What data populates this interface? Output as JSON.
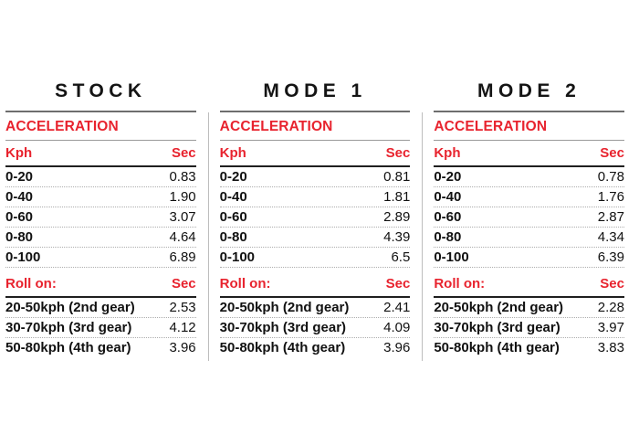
{
  "accent_red": "#e8232e",
  "columns": [
    {
      "title": "STOCK",
      "section_label": "ACCELERATION",
      "kph_header": "Kph",
      "sec_header": "Sec",
      "accel_rows": [
        {
          "label": "0-20",
          "sec": "0.83"
        },
        {
          "label": "0-40",
          "sec": "1.90"
        },
        {
          "label": "0-60",
          "sec": "3.07"
        },
        {
          "label": "0-80",
          "sec": "4.64"
        },
        {
          "label": "0-100",
          "sec": "6.89"
        }
      ],
      "rollon_label": "Roll on:",
      "rollon_sec_header": "Sec",
      "rollon_rows": [
        {
          "label": "20-50kph (2nd gear)",
          "sec": "2.53"
        },
        {
          "label": "30-70kph (3rd gear)",
          "sec": "4.12"
        },
        {
          "label": "50-80kph (4th gear)",
          "sec": "3.96"
        }
      ]
    },
    {
      "title": "MODE 1",
      "section_label": "ACCELERATION",
      "kph_header": "Kph",
      "sec_header": "Sec",
      "accel_rows": [
        {
          "label": "0-20",
          "sec": "0.81"
        },
        {
          "label": "0-40",
          "sec": "1.81"
        },
        {
          "label": "0-60",
          "sec": "2.89"
        },
        {
          "label": "0-80",
          "sec": "4.39"
        },
        {
          "label": "0-100",
          "sec": "6.5"
        }
      ],
      "rollon_label": "Roll on:",
      "rollon_sec_header": "Sec",
      "rollon_rows": [
        {
          "label": "20-50kph (2nd gear)",
          "sec": "2.41"
        },
        {
          "label": "30-70kph (3rd gear)",
          "sec": "4.09"
        },
        {
          "label": "50-80kph (4th gear)",
          "sec": "3.96"
        }
      ]
    },
    {
      "title": "MODE 2",
      "section_label": "ACCELERATION",
      "kph_header": "Kph",
      "sec_header": "Sec",
      "accel_rows": [
        {
          "label": "0-20",
          "sec": "0.78"
        },
        {
          "label": "0-40",
          "sec": "1.76"
        },
        {
          "label": "0-60",
          "sec": "2.87"
        },
        {
          "label": "0-80",
          "sec": "4.34"
        },
        {
          "label": "0-100",
          "sec": "6.39"
        }
      ],
      "rollon_label": "Roll on:",
      "rollon_sec_header": "Sec",
      "rollon_rows": [
        {
          "label": "20-50kph (2nd gear)",
          "sec": "2.28"
        },
        {
          "label": "30-70kph (3rd gear)",
          "sec": "3.97"
        },
        {
          "label": "50-80kph (4th gear)",
          "sec": "3.83"
        }
      ]
    }
  ],
  "chart_data": [
    {
      "type": "table",
      "title": "STOCK",
      "columns": [
        "Kph",
        "Sec"
      ],
      "sections": [
        {
          "header": "ACCELERATION",
          "rows": [
            [
              "0-20",
              0.83
            ],
            [
              "0-40",
              1.9
            ],
            [
              "0-60",
              3.07
            ],
            [
              "0-80",
              4.64
            ],
            [
              "0-100",
              6.89
            ]
          ]
        },
        {
          "header": "Roll on:",
          "rows": [
            [
              "20-50kph (2nd gear)",
              2.53
            ],
            [
              "30-70kph (3rd gear)",
              4.12
            ],
            [
              "50-80kph (4th gear)",
              3.96
            ]
          ]
        }
      ]
    },
    {
      "type": "table",
      "title": "MODE 1",
      "columns": [
        "Kph",
        "Sec"
      ],
      "sections": [
        {
          "header": "ACCELERATION",
          "rows": [
            [
              "0-20",
              0.81
            ],
            [
              "0-40",
              1.81
            ],
            [
              "0-60",
              2.89
            ],
            [
              "0-80",
              4.39
            ],
            [
              "0-100",
              6.5
            ]
          ]
        },
        {
          "header": "Roll on:",
          "rows": [
            [
              "20-50kph (2nd gear)",
              2.41
            ],
            [
              "30-70kph (3rd gear)",
              4.09
            ],
            [
              "50-80kph (4th gear)",
              3.96
            ]
          ]
        }
      ]
    },
    {
      "type": "table",
      "title": "MODE 2",
      "columns": [
        "Kph",
        "Sec"
      ],
      "sections": [
        {
          "header": "ACCELERATION",
          "rows": [
            [
              "0-20",
              0.78
            ],
            [
              "0-40",
              1.76
            ],
            [
              "0-60",
              2.87
            ],
            [
              "0-80",
              4.34
            ],
            [
              "0-100",
              6.39
            ]
          ]
        },
        {
          "header": "Roll on:",
          "rows": [
            [
              "20-50kph (2nd gear)",
              2.28
            ],
            [
              "30-70kph (3rd gear)",
              3.97
            ],
            [
              "50-80kph (4th gear)",
              3.83
            ]
          ]
        }
      ]
    }
  ]
}
